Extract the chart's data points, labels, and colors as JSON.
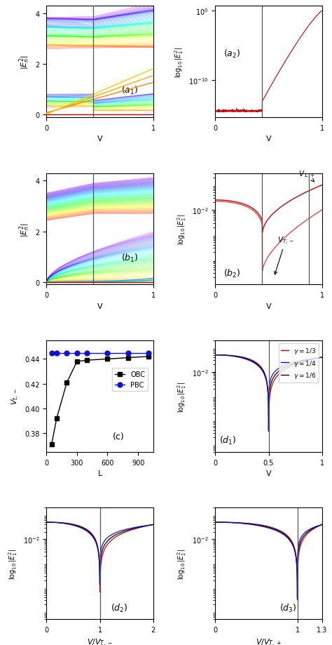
{
  "fig_width": 4.74,
  "fig_height": 9.2,
  "dpi": 100,
  "bg_color": "#ffffff",
  "vline_color": "#555555",
  "red_color": "#cc0000",
  "blue_color": "#1111cc",
  "black_color": "#000000",
  "v_trans_a1": 0.44,
  "v_trans_b2": 0.44,
  "v_trans_b2_second": 0.88,
  "obc_L": [
    50,
    100,
    200,
    300,
    400,
    600,
    800,
    1000
  ],
  "obc_vals": [
    0.371,
    0.392,
    0.421,
    0.438,
    0.439,
    0.44,
    0.441,
    0.442
  ],
  "pbc_vals": [
    0.445,
    0.445,
    0.445,
    0.445,
    0.445,
    0.445,
    0.445,
    0.445
  ]
}
